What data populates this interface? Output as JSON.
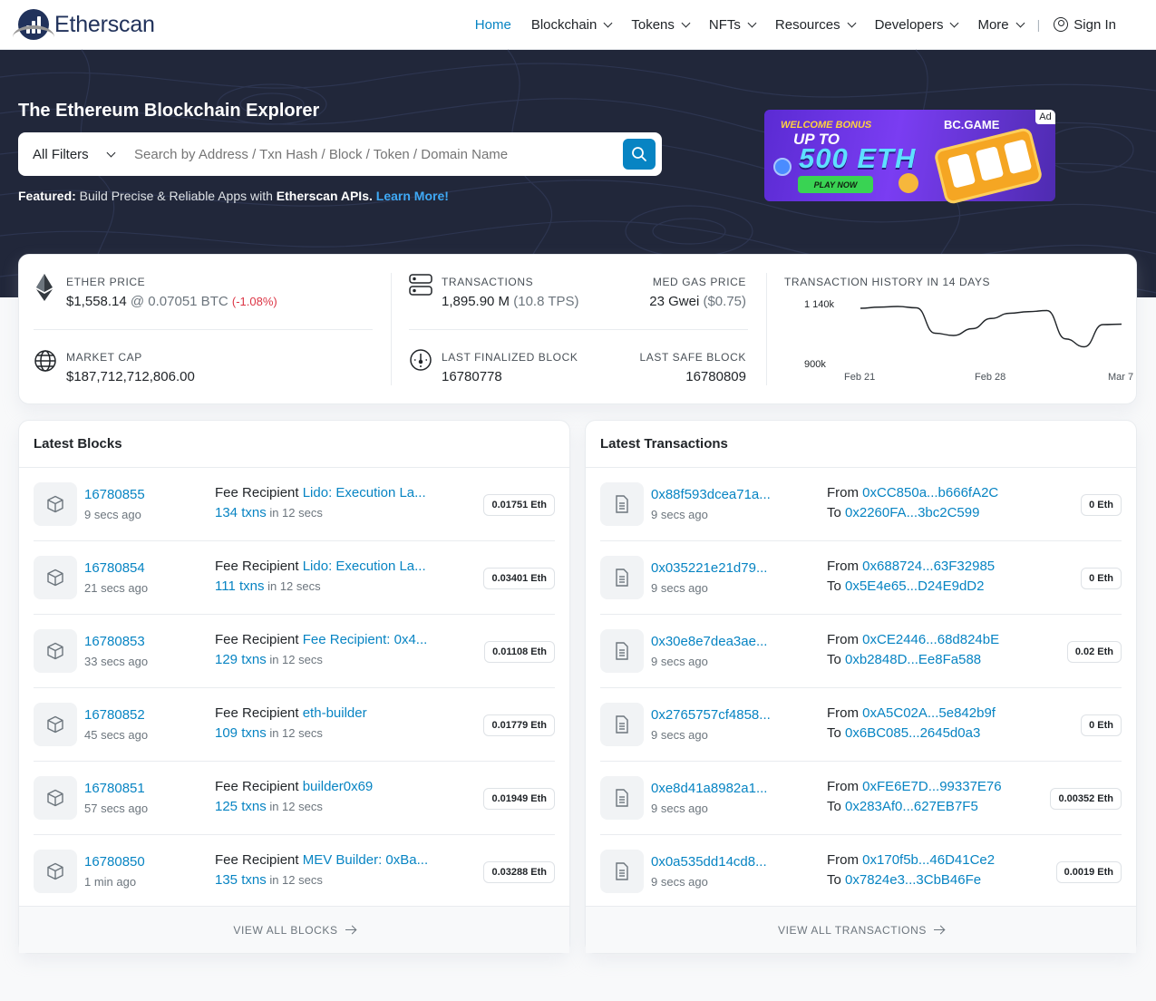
{
  "header": {
    "logo_text": "Etherscan",
    "nav": [
      {
        "label": "Home",
        "active": true,
        "dropdown": false
      },
      {
        "label": "Blockchain",
        "dropdown": true
      },
      {
        "label": "Tokens",
        "dropdown": true
      },
      {
        "label": "NFTs",
        "dropdown": true
      },
      {
        "label": "Resources",
        "dropdown": true
      },
      {
        "label": "Developers",
        "dropdown": true
      },
      {
        "label": "More",
        "dropdown": true
      }
    ],
    "signin_label": "Sign In"
  },
  "hero": {
    "title": "The Ethereum Blockchain Explorer",
    "filter_label": "All Filters",
    "search_placeholder": "Search by Address / Txn Hash / Block / Token / Domain Name",
    "featured_label": "Featured:",
    "featured_text": " Build Precise & Reliable Apps with ",
    "featured_bold": "Etherscan APIs.",
    "featured_link": "Learn More!",
    "ad": {
      "badge": "Ad",
      "welcome": "WELCOME BONUS",
      "upto": "UP TO",
      "amount": "500 ETH",
      "cta": "PLAY NOW",
      "brand": "BC.GAME"
    }
  },
  "stats": {
    "ether_price_label": "ETHER PRICE",
    "ether_price": "$1,558.14",
    "ether_btc": " @ 0.07051 BTC",
    "ether_change": "(-1.08%)",
    "market_cap_label": "MARKET CAP",
    "market_cap": "$187,712,712,806.00",
    "transactions_label": "TRANSACTIONS",
    "transactions": "1,895.90 M",
    "tps": "(10.8 TPS)",
    "gas_label": "MED GAS PRICE",
    "gas": "23 Gwei",
    "gas_usd": "($0.75)",
    "finalized_label": "LAST FINALIZED BLOCK",
    "finalized": "16780778",
    "safe_label": "LAST SAFE BLOCK",
    "safe": "16780809"
  },
  "chart_data": {
    "type": "line",
    "title": "TRANSACTION HISTORY IN 14 DAYS",
    "x_tick_labels": [
      "Feb 21",
      "Feb 28",
      "Mar 7"
    ],
    "y_tick_labels": [
      "1 140k",
      "900k"
    ],
    "x": [
      "Feb 21",
      "Feb 22",
      "Feb 23",
      "Feb 24",
      "Feb 25",
      "Feb 26",
      "Feb 27",
      "Feb 28",
      "Mar 1",
      "Mar 2",
      "Mar 3",
      "Mar 4",
      "Mar 5",
      "Mar 6",
      "Mar 7"
    ],
    "values": [
      1120,
      1125,
      1128,
      1122,
      1010,
      1000,
      1030,
      1075,
      1098,
      1105,
      1110,
      985,
      950,
      1048,
      1050
    ],
    "ylim": [
      900,
      1140
    ],
    "grid": false
  },
  "blocks": {
    "title": "Latest Blocks",
    "items": [
      {
        "id": "16780855",
        "time": "9 secs ago",
        "prefix": "Fee Recipient ",
        "recipient": "Lido: Execution La...",
        "txns": "134 txns",
        "txns_suffix": " in 12 secs",
        "reward": "0.01751 Eth"
      },
      {
        "id": "16780854",
        "time": "21 secs ago",
        "prefix": "Fee Recipient ",
        "recipient": "Lido: Execution La...",
        "txns": "111 txns",
        "txns_suffix": " in 12 secs",
        "reward": "0.03401 Eth"
      },
      {
        "id": "16780853",
        "time": "33 secs ago",
        "prefix": "Fee Recipient ",
        "recipient": "Fee Recipient: 0x4...",
        "txns": "129 txns",
        "txns_suffix": " in 12 secs",
        "reward": "0.01108 Eth"
      },
      {
        "id": "16780852",
        "time": "45 secs ago",
        "prefix": "Fee Recipient ",
        "recipient": "eth-builder",
        "txns": "109 txns",
        "txns_suffix": " in 12 secs",
        "reward": "0.01779 Eth"
      },
      {
        "id": "16780851",
        "time": "57 secs ago",
        "prefix": "Fee Recipient ",
        "recipient": "builder0x69",
        "txns": "125 txns",
        "txns_suffix": " in 12 secs",
        "reward": "0.01949 Eth"
      },
      {
        "id": "16780850",
        "time": "1 min ago",
        "prefix": "Fee Recipient ",
        "recipient": "MEV Builder: 0xBa...",
        "txns": "135 txns",
        "txns_suffix": " in 12 secs",
        "reward": "0.03288 Eth"
      }
    ],
    "footer": "VIEW ALL BLOCKS"
  },
  "transactions": {
    "title": "Latest Transactions",
    "items": [
      {
        "hash": "0x88f593dcea71a...",
        "time": "9 secs ago",
        "from_label": "From ",
        "from": "0xCC850a...b666fA2C",
        "to_label": "To ",
        "to": "0x2260FA...3bc2C599",
        "value": "0 Eth"
      },
      {
        "hash": "0x035221e21d79...",
        "time": "9 secs ago",
        "from_label": "From ",
        "from": "0x688724...63F32985",
        "to_label": "To ",
        "to": "0x5E4e65...D24E9dD2",
        "value": "0 Eth"
      },
      {
        "hash": "0x30e8e7dea3ae...",
        "time": "9 secs ago",
        "from_label": "From ",
        "from": "0xCE2446...68d824bE",
        "to_label": "To ",
        "to": "0xb2848D...Ee8Fa588",
        "value": "0.02 Eth"
      },
      {
        "hash": "0x2765757cf4858...",
        "time": "9 secs ago",
        "from_label": "From ",
        "from": "0xA5C02A...5e842b9f",
        "to_label": "To ",
        "to": "0x6BC085...2645d0a3",
        "value": "0 Eth"
      },
      {
        "hash": "0xe8d41a8982a1...",
        "time": "9 secs ago",
        "from_label": "From ",
        "from": "0xFE6E7D...99337E76",
        "to_label": "To ",
        "to": "0x283Af0...627EB7F5",
        "value": "0.00352 Eth"
      },
      {
        "hash": "0x0a535dd14cd8...",
        "time": "9 secs ago",
        "from_label": "From ",
        "from": "0x170f5b...46D41Ce2",
        "to_label": "To ",
        "to": "0x7824e3...3CbB46Fe",
        "value": "0.0019 Eth"
      }
    ],
    "footer": "VIEW ALL TRANSACTIONS"
  }
}
